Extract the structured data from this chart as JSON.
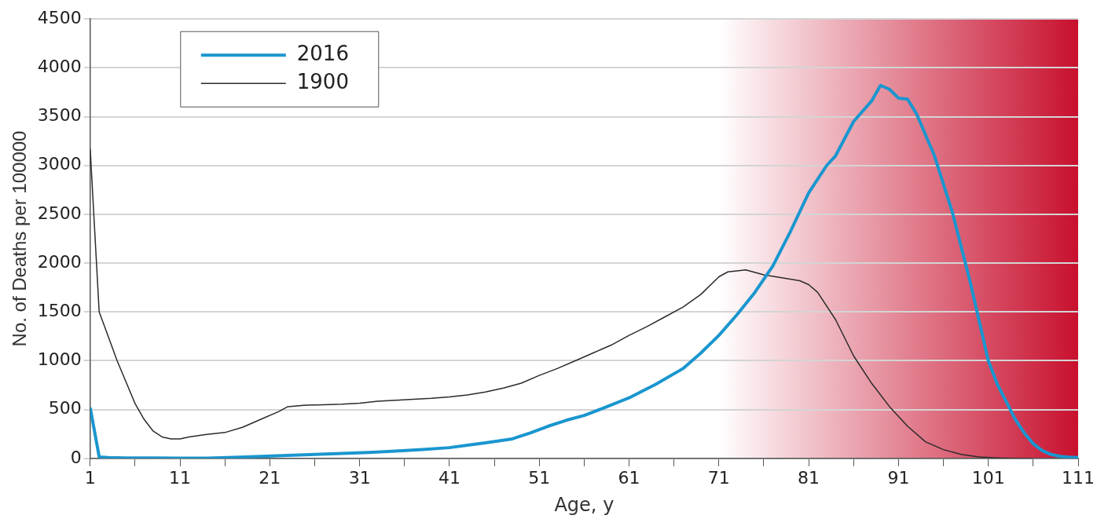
{
  "chart_data": {
    "type": "line",
    "xlabel": "Age, y",
    "ylabel": "No. of Deaths per 100000",
    "xlim": [
      1,
      111
    ],
    "xticks": [
      1,
      {
        "value": 6,
        "label": null
      },
      11,
      {
        "value": 16,
        "label": null
      },
      21,
      {
        "value": 26,
        "label": null
      },
      31,
      {
        "value": 36,
        "label": null
      },
      41,
      {
        "value": 46,
        "label": null
      },
      51,
      {
        "value": 56,
        "label": null
      },
      61,
      {
        "value": 66,
        "label": null
      },
      71,
      {
        "value": 76,
        "label": null
      },
      81,
      {
        "value": 86,
        "label": null
      },
      91,
      {
        "value": 96,
        "label": null
      },
      101,
      {
        "value": 106,
        "label": null
      },
      111
    ],
    "ylim": [
      0,
      4500
    ],
    "yticks": [
      0,
      500,
      1000,
      1500,
      2000,
      2500,
      3000,
      3500,
      4000,
      4500
    ],
    "grid": "y",
    "legend": "top left",
    "marker": "none",
    "line_style": "solid",
    "bands": [
      {
        "axis": "x",
        "from": 71,
        "to": 111,
        "color": "#c8102e"
      }
    ],
    "series": [
      {
        "name": "2016",
        "color": "#1a96cf",
        "x": [
          1,
          2,
          3,
          5,
          8,
          11,
          14,
          17,
          20,
          23,
          26,
          29,
          32,
          35,
          38,
          41,
          43,
          45,
          48,
          50,
          52,
          54,
          56,
          58,
          61,
          64,
          67,
          69,
          71,
          73,
          75,
          77,
          79,
          81,
          83,
          84,
          86,
          88,
          89,
          90,
          91,
          92,
          93,
          95,
          97,
          99,
          100,
          101,
          102,
          103,
          104,
          105,
          106,
          107,
          108,
          109,
          110,
          111
        ],
        "values": [
          520,
          15,
          8,
          5,
          5,
          3,
          3,
          10,
          20,
          30,
          40,
          50,
          60,
          75,
          90,
          110,
          135,
          160,
          200,
          260,
          330,
          390,
          440,
          510,
          620,
          760,
          920,
          1080,
          1260,
          1470,
          1700,
          1970,
          2330,
          2720,
          3000,
          3100,
          3450,
          3660,
          3820,
          3780,
          3690,
          3680,
          3530,
          3100,
          2520,
          1800,
          1400,
          1000,
          760,
          580,
          400,
          260,
          150,
          80,
          40,
          20,
          12,
          10
        ]
      },
      {
        "name": "1900",
        "color": "#2b2b2b",
        "x": [
          1,
          2,
          3,
          4,
          5,
          6,
          7,
          8,
          9,
          10,
          11,
          12,
          14,
          16,
          18,
          20,
          22,
          23,
          25,
          27,
          29,
          31,
          33,
          35,
          37,
          39,
          41,
          43,
          45,
          47,
          49,
          51,
          53,
          55,
          57,
          59,
          61,
          63,
          65,
          67,
          69,
          71,
          72,
          74,
          76,
          78,
          80,
          81,
          82,
          84,
          86,
          88,
          90,
          92,
          94,
          96,
          98,
          100,
          102,
          104,
          106
        ],
        "values": [
          3170,
          1500,
          1250,
          1000,
          780,
          560,
          400,
          280,
          220,
          200,
          200,
          220,
          245,
          265,
          320,
          400,
          480,
          530,
          545,
          550,
          555,
          565,
          585,
          595,
          605,
          615,
          630,
          650,
          680,
          720,
          770,
          850,
          920,
          1000,
          1080,
          1160,
          1260,
          1350,
          1450,
          1550,
          1680,
          1860,
          1910,
          1930,
          1880,
          1850,
          1820,
          1780,
          1700,
          1420,
          1050,
          770,
          530,
          330,
          170,
          90,
          40,
          15,
          5,
          0,
          0
        ]
      }
    ]
  }
}
